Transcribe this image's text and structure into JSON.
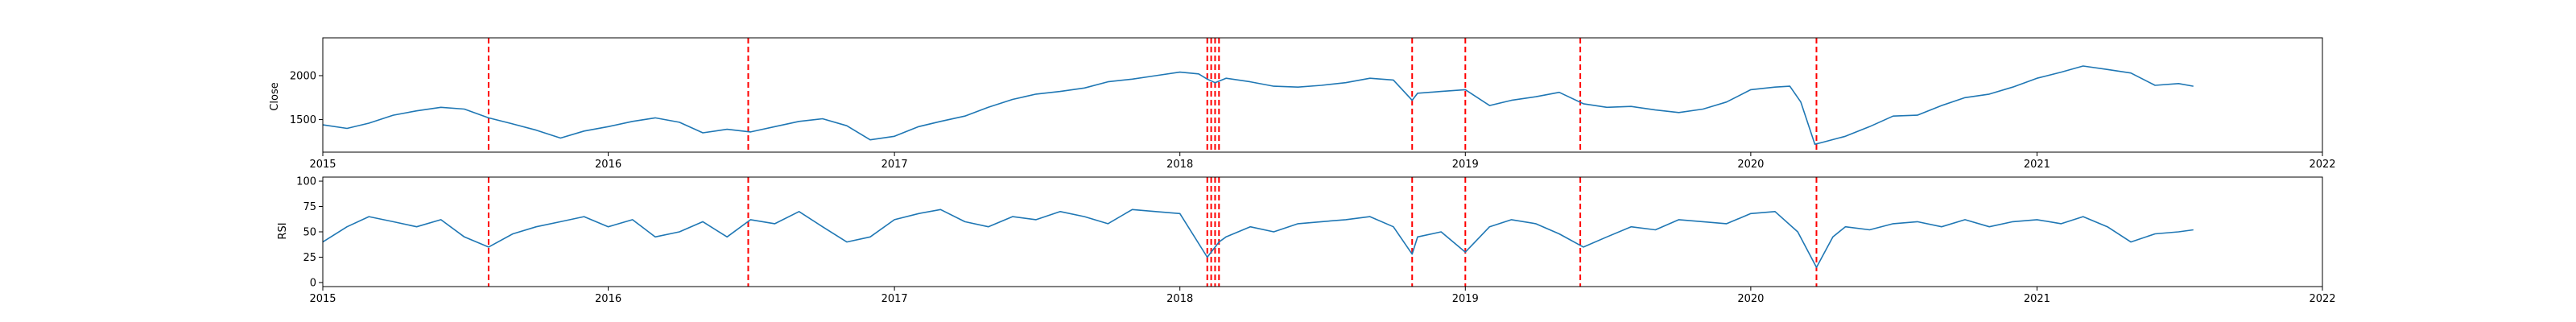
{
  "chart_data": [
    {
      "type": "line",
      "title": "",
      "xlabel": "",
      "ylabel": "Close",
      "xlim": [
        "2015-01-01",
        "2022-01-01"
      ],
      "ylim": [
        1130,
        2430
      ],
      "x_ticks": [
        "2015",
        "2016",
        "2017",
        "2018",
        "2019",
        "2020",
        "2021",
        "2022"
      ],
      "y_ticks": [
        1500,
        2000
      ],
      "grid": false,
      "series": [
        {
          "color": "#1f77b4",
          "x": [
            "2015-01-01",
            "2015-02-01",
            "2015-03-01",
            "2015-04-01",
            "2015-05-01",
            "2015-06-01",
            "2015-07-01",
            "2015-08-01",
            "2015-09-01",
            "2015-10-01",
            "2015-11-01",
            "2015-12-01",
            "2016-01-01",
            "2016-02-01",
            "2016-03-01",
            "2016-04-01",
            "2016-05-01",
            "2016-06-01",
            "2016-07-01",
            "2016-08-01",
            "2016-09-01",
            "2016-10-01",
            "2016-11-01",
            "2016-12-01",
            "2017-01-01",
            "2017-02-01",
            "2017-03-01",
            "2017-04-01",
            "2017-05-01",
            "2017-06-01",
            "2017-07-01",
            "2017-08-01",
            "2017-09-01",
            "2017-10-01",
            "2017-11-01",
            "2017-12-01",
            "2018-01-01",
            "2018-01-25",
            "2018-02-05",
            "2018-02-15",
            "2018-03-01",
            "2018-04-01",
            "2018-05-01",
            "2018-06-01",
            "2018-07-01",
            "2018-08-01",
            "2018-09-01",
            "2018-10-01",
            "2018-10-25",
            "2018-11-01",
            "2018-12-01",
            "2019-01-01",
            "2019-02-01",
            "2019-03-01",
            "2019-04-01",
            "2019-05-01",
            "2019-06-01",
            "2019-07-01",
            "2019-08-01",
            "2019-09-01",
            "2019-10-01",
            "2019-11-01",
            "2019-12-01",
            "2020-01-01",
            "2020-02-01",
            "2020-02-20",
            "2020-03-05",
            "2020-03-23",
            "2020-04-01",
            "2020-05-01",
            "2020-06-01",
            "2020-07-01",
            "2020-08-01",
            "2020-09-01",
            "2020-10-01",
            "2020-11-01",
            "2020-12-01",
            "2021-01-01",
            "2021-02-01",
            "2021-03-01",
            "2021-04-01",
            "2021-05-01",
            "2021-06-01",
            "2021-07-01",
            "2021-07-20"
          ],
          "values": [
            1440,
            1400,
            1460,
            1550,
            1600,
            1640,
            1620,
            1520,
            1450,
            1380,
            1290,
            1370,
            1420,
            1480,
            1520,
            1470,
            1350,
            1390,
            1360,
            1420,
            1480,
            1510,
            1430,
            1270,
            1310,
            1420,
            1480,
            1540,
            1640,
            1730,
            1790,
            1820,
            1860,
            1930,
            1960,
            2000,
            2040,
            2020,
            1960,
            1920,
            1970,
            1930,
            1880,
            1870,
            1890,
            1920,
            1970,
            1950,
            1720,
            1800,
            1820,
            1840,
            1660,
            1720,
            1760,
            1810,
            1680,
            1640,
            1650,
            1610,
            1580,
            1620,
            1700,
            1840,
            1870,
            1880,
            1700,
            1220,
            1240,
            1310,
            1420,
            1540,
            1550,
            1660,
            1750,
            1790,
            1870,
            1970,
            2040,
            2110,
            2070,
            2030,
            1890,
            1910,
            1880
          ]
        }
      ],
      "vlines": {
        "color": "#ff0000",
        "style": "dashed",
        "x": [
          "2015-08-01",
          "2016-06-28",
          "2018-02-05",
          "2018-02-10",
          "2018-02-15",
          "2018-02-20",
          "2018-10-25",
          "2019-01-01",
          "2019-05-28",
          "2020-03-25"
        ]
      }
    },
    {
      "type": "line",
      "title": "",
      "xlabel": "",
      "ylabel": "RSI",
      "xlim": [
        "2015-01-01",
        "2022-01-01"
      ],
      "ylim": [
        -4,
        104
      ],
      "x_ticks": [
        "2015",
        "2016",
        "2017",
        "2018",
        "2019",
        "2020",
        "2021",
        "2022"
      ],
      "y_ticks": [
        0,
        25,
        50,
        75,
        100
      ],
      "grid": false,
      "series": [
        {
          "color": "#1f77b4",
          "x": [
            "2015-01-01",
            "2015-02-01",
            "2015-03-01",
            "2015-04-01",
            "2015-05-01",
            "2015-06-01",
            "2015-07-01",
            "2015-08-01",
            "2015-09-01",
            "2015-10-01",
            "2015-11-01",
            "2015-12-01",
            "2016-01-01",
            "2016-02-01",
            "2016-03-01",
            "2016-04-01",
            "2016-05-01",
            "2016-06-01",
            "2016-07-01",
            "2016-08-01",
            "2016-09-01",
            "2016-10-01",
            "2016-11-01",
            "2016-12-01",
            "2017-01-01",
            "2017-02-01",
            "2017-03-01",
            "2017-04-01",
            "2017-05-01",
            "2017-06-01",
            "2017-07-01",
            "2017-08-01",
            "2017-09-01",
            "2017-10-01",
            "2017-11-01",
            "2017-12-01",
            "2018-01-01",
            "2018-02-05",
            "2018-02-20",
            "2018-03-01",
            "2018-04-01",
            "2018-05-01",
            "2018-06-01",
            "2018-07-01",
            "2018-08-01",
            "2018-09-01",
            "2018-10-01",
            "2018-10-25",
            "2018-11-01",
            "2018-12-01",
            "2019-01-01",
            "2019-02-01",
            "2019-03-01",
            "2019-04-01",
            "2019-05-01",
            "2019-06-01",
            "2019-07-01",
            "2019-08-01",
            "2019-09-01",
            "2019-10-01",
            "2019-11-01",
            "2019-12-01",
            "2020-01-01",
            "2020-02-01",
            "2020-03-01",
            "2020-03-25",
            "2020-04-15",
            "2020-05-01",
            "2020-06-01",
            "2020-07-01",
            "2020-08-01",
            "2020-09-01",
            "2020-10-01",
            "2020-11-01",
            "2020-12-01",
            "2021-01-01",
            "2021-02-01",
            "2021-03-01",
            "2021-04-01",
            "2021-05-01",
            "2021-06-01",
            "2021-07-01",
            "2021-07-20"
          ],
          "values": [
            40,
            55,
            65,
            60,
            55,
            62,
            45,
            35,
            48,
            55,
            60,
            65,
            55,
            62,
            45,
            50,
            60,
            45,
            62,
            58,
            70,
            55,
            40,
            45,
            62,
            68,
            72,
            60,
            55,
            65,
            62,
            70,
            65,
            58,
            72,
            70,
            68,
            25,
            40,
            45,
            55,
            50,
            58,
            60,
            62,
            65,
            55,
            28,
            45,
            50,
            30,
            55,
            62,
            58,
            48,
            35,
            45,
            55,
            52,
            62,
            60,
            58,
            68,
            70,
            50,
            15,
            45,
            55,
            52,
            58,
            60,
            55,
            62,
            55,
            60,
            62,
            58,
            65,
            55,
            40,
            48,
            50,
            52
          ]
        }
      ],
      "vlines": {
        "color": "#ff0000",
        "style": "dashed",
        "x": [
          "2015-08-01",
          "2016-06-28",
          "2018-02-05",
          "2018-02-10",
          "2018-02-15",
          "2018-02-20",
          "2018-10-25",
          "2019-01-01",
          "2019-05-28",
          "2020-03-25"
        ]
      }
    }
  ]
}
